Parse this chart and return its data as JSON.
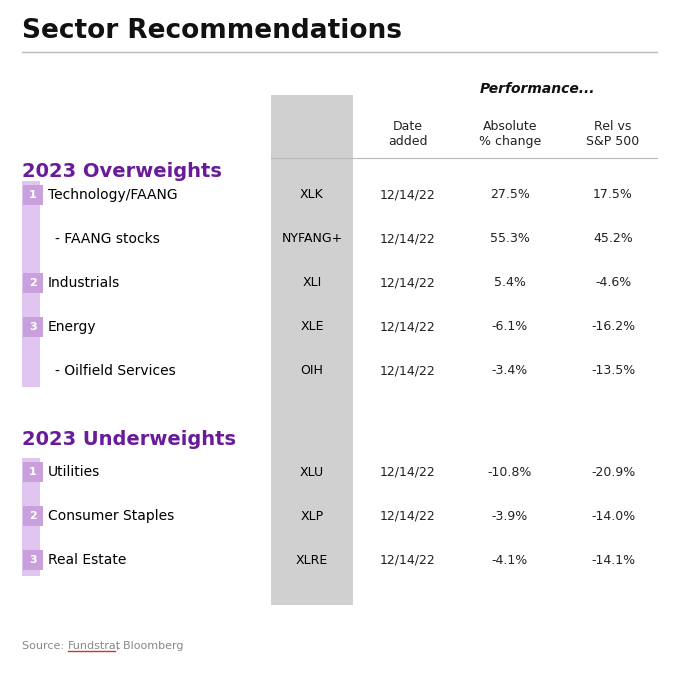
{
  "title": "Sector Recommendations",
  "performance_label": "Performance...",
  "col_headers": [
    "Date\nadded",
    "Absolute\n% change",
    "Rel vs\nS&P 500"
  ],
  "overweights_label": "2023 Overweights",
  "underweights_label": "2023 Underweights",
  "overweights": [
    {
      "rank": "1",
      "name": "Technology/FAANG",
      "ticker": "XLK",
      "date": "12/14/22",
      "abs": "27.5%",
      "rel": "17.5%",
      "sub": false
    },
    {
      "rank": "",
      "name": "- FAANG stocks",
      "ticker": "NYFANG+",
      "date": "12/14/22",
      "abs": "55.3%",
      "rel": "45.2%",
      "sub": true
    },
    {
      "rank": "2",
      "name": "Industrials",
      "ticker": "XLI",
      "date": "12/14/22",
      "abs": "5.4%",
      "rel": "-4.6%",
      "sub": false
    },
    {
      "rank": "3",
      "name": "Energy",
      "ticker": "XLE",
      "date": "12/14/22",
      "abs": "-6.1%",
      "rel": "-16.2%",
      "sub": false
    },
    {
      "rank": "",
      "name": "- Oilfield Services",
      "ticker": "OIH",
      "date": "12/14/22",
      "abs": "-3.4%",
      "rel": "-13.5%",
      "sub": true
    }
  ],
  "underweights": [
    {
      "rank": "1",
      "name": "Utilities",
      "ticker": "XLU",
      "date": "12/14/22",
      "abs": "-10.8%",
      "rel": "-20.9%",
      "sub": false
    },
    {
      "rank": "2",
      "name": "Consumer Staples",
      "ticker": "XLP",
      "date": "12/14/22",
      "abs": "-3.9%",
      "rel": "-14.0%",
      "sub": false
    },
    {
      "rank": "3",
      "name": "Real Estate",
      "ticker": "XLRE",
      "date": "12/14/22",
      "abs": "-4.1%",
      "rel": "-14.1%",
      "sub": false
    }
  ],
  "light_purple_bg": "#DFC5F0",
  "gray_band_color": "#D0D0D0",
  "bg_color": "#FFFFFF",
  "title_color": "#000000",
  "section_title_color": "#6A1B9A",
  "rank_bg_color": "#C9A0DC",
  "rank_text_color": "#FFFFFF",
  "data_text_color": "#222222",
  "source_color": "#888888",
  "line_color": "#BBBBBB"
}
